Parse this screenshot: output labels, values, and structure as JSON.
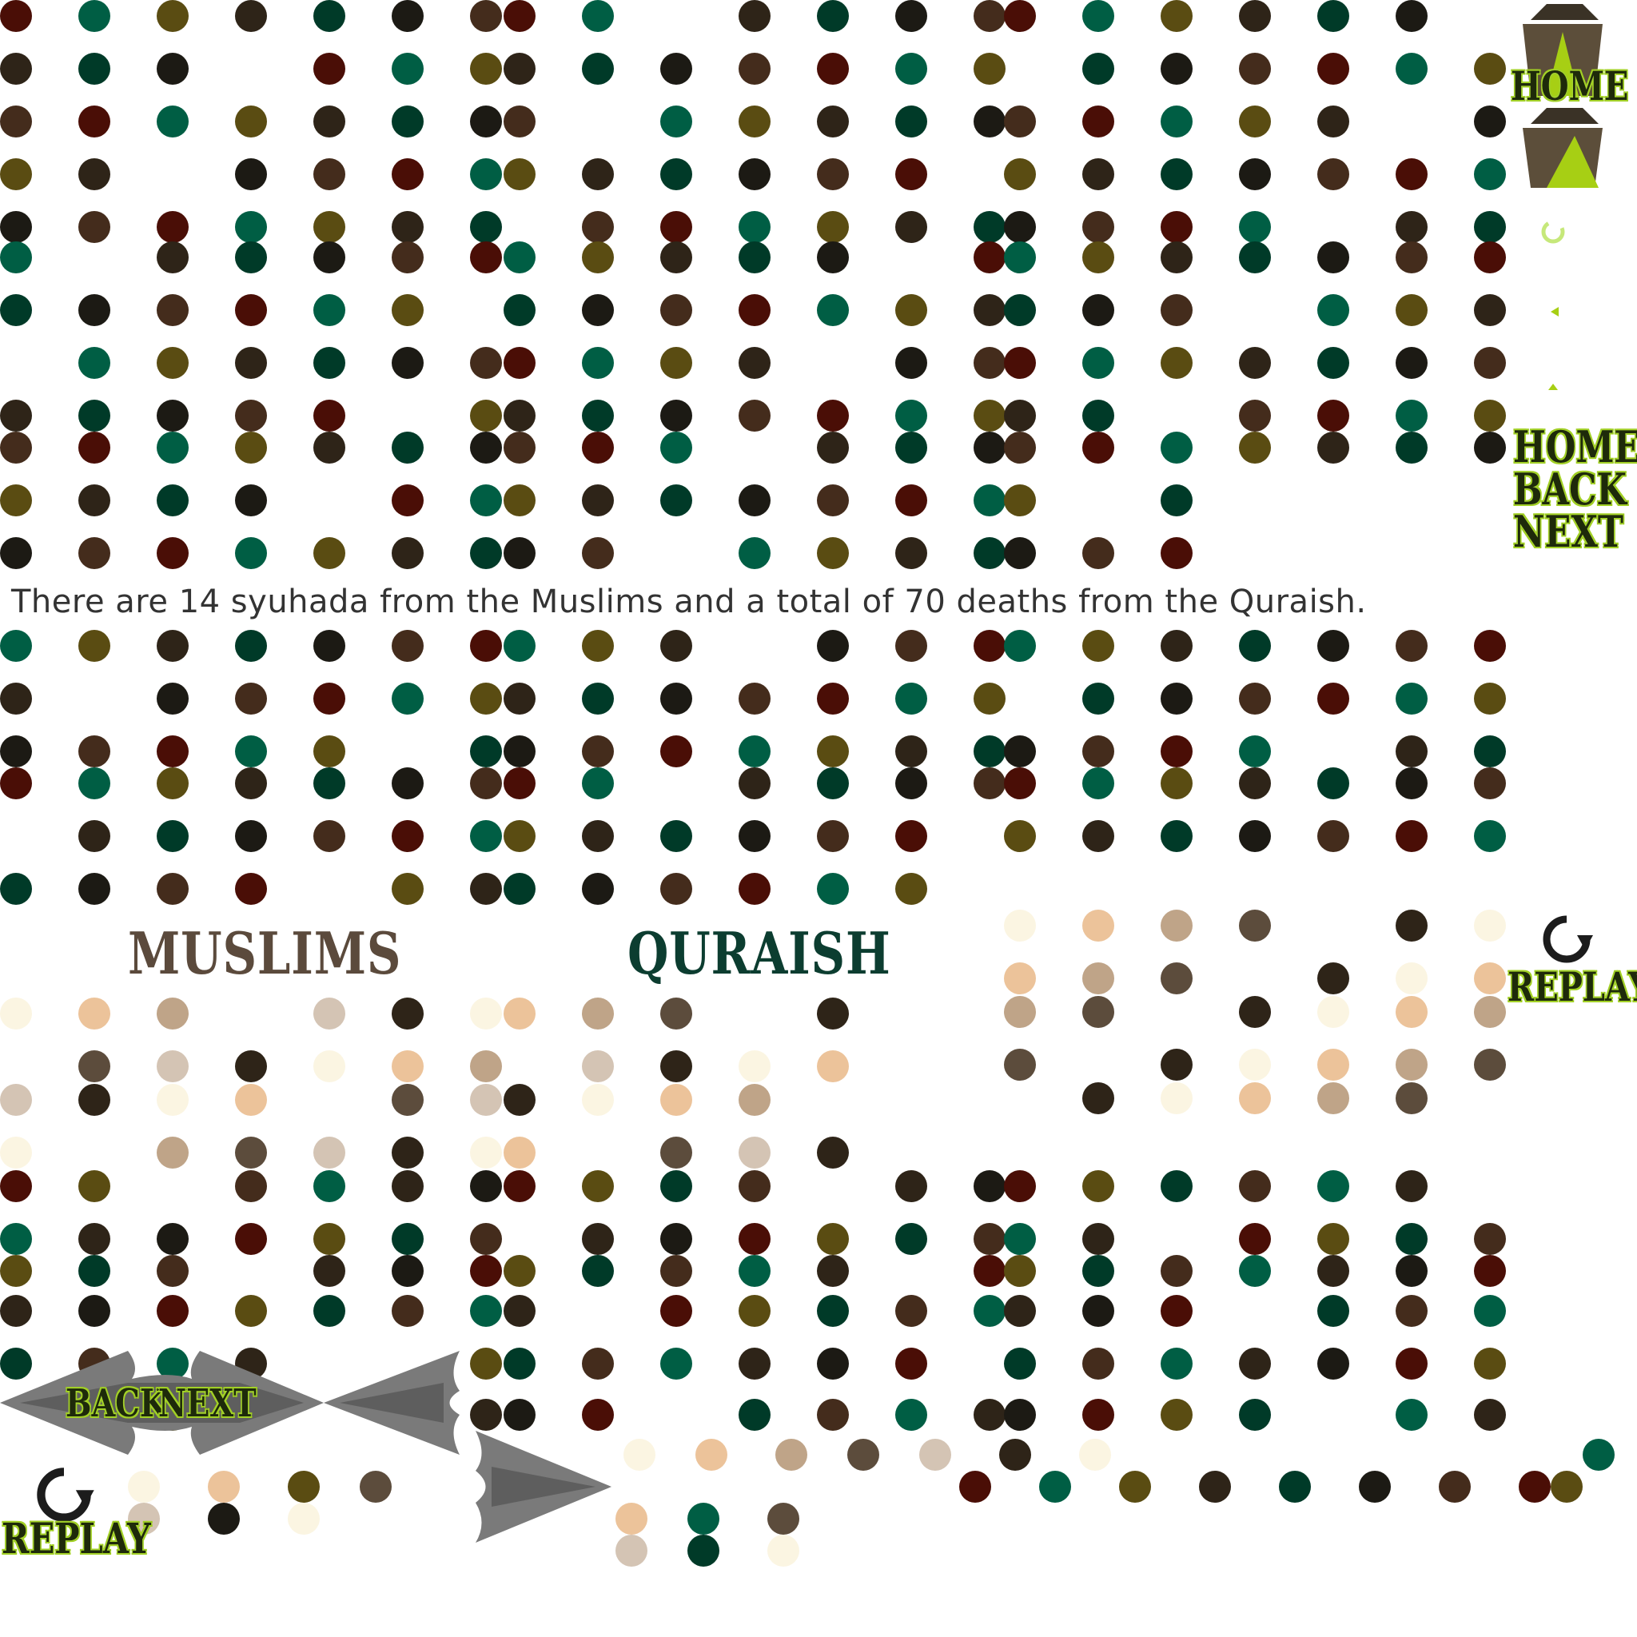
{
  "caption": "There are 14 syuhada from the Muslims and a total of 70 deaths from the Quraish.",
  "titles": {
    "muslims": "MUSLIMS",
    "quraish": "QURAISH"
  },
  "buttons": {
    "home_top": "HOME",
    "home_mid": "HOME",
    "back_mid": "BACK",
    "next_mid": "NEXT",
    "replay_right": "REPLAY",
    "back_bottom": "BACK",
    "next_bottom": "NEXT",
    "replay_bottom": "REPLAY"
  },
  "colors": {
    "dark_dot_palette": [
      "#4a0e06",
      "#005e44",
      "#5a4c12",
      "#2e2418",
      "#003a28",
      "#1c1a14",
      "#442c1c"
    ],
    "light_dot_palette": [
      "#fbf5e2",
      "#ecc39a",
      "#bfa488",
      "#5c4c3c",
      "#d4c4b4",
      "#2e2418"
    ],
    "button_text": "#1e2a0a",
    "button_glow": "#9dcc1e",
    "tent": "#5c4e3a",
    "arrow": "#6e6e6e"
  },
  "icons": [
    "tent-icon",
    "replay-icon",
    "back-arrow-icon",
    "next-arrow-icon"
  ]
}
